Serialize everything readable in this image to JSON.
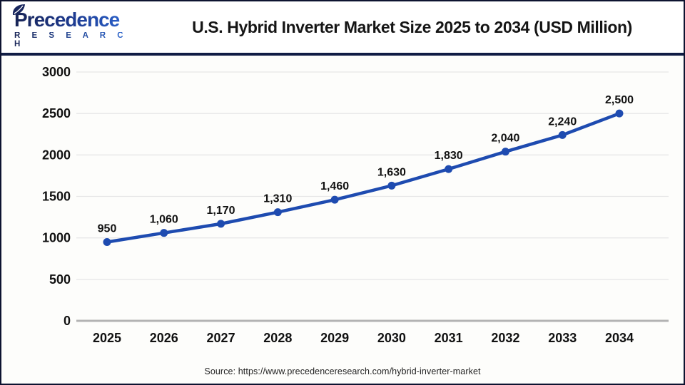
{
  "header": {
    "logo": {
      "brand": "Precedence",
      "sub": "R E S E A R C H"
    },
    "title": "U.S. Hybrid Inverter Market Size 2025 to 2034 (USD Million)"
  },
  "source_line": "Source: https://www.precedenceresearch.com/hybrid-inverter-market",
  "colors": {
    "line": "#1e4bb0",
    "marker": "#1e4bb0",
    "grid": "#e7e7e7",
    "zero_axis": "#b3b3b3",
    "tick_label": "#111111",
    "data_label": "#111111",
    "navy_accent": "#101c44"
  },
  "chart_data": {
    "type": "line",
    "title": "U.S. Hybrid Inverter Market Size 2025 to 2034 (USD Million)",
    "categories": [
      "2025",
      "2026",
      "2027",
      "2028",
      "2029",
      "2030",
      "2031",
      "2032",
      "2033",
      "2034"
    ],
    "values": [
      950,
      1060,
      1170,
      1310,
      1460,
      1630,
      1830,
      2040,
      2240,
      2500
    ],
    "point_labels": [
      "950",
      "1,060",
      "1,170",
      "1,310",
      "1,460",
      "1,630",
      "1,830",
      "2,040",
      "2,240",
      "2,500"
    ],
    "xlabel": "",
    "ylabel": "",
    "ylim": [
      0,
      3000
    ],
    "yticks": [
      0,
      500,
      1000,
      1500,
      2000,
      2500,
      3000
    ],
    "grid": true,
    "legend": false,
    "units": "USD Million"
  }
}
